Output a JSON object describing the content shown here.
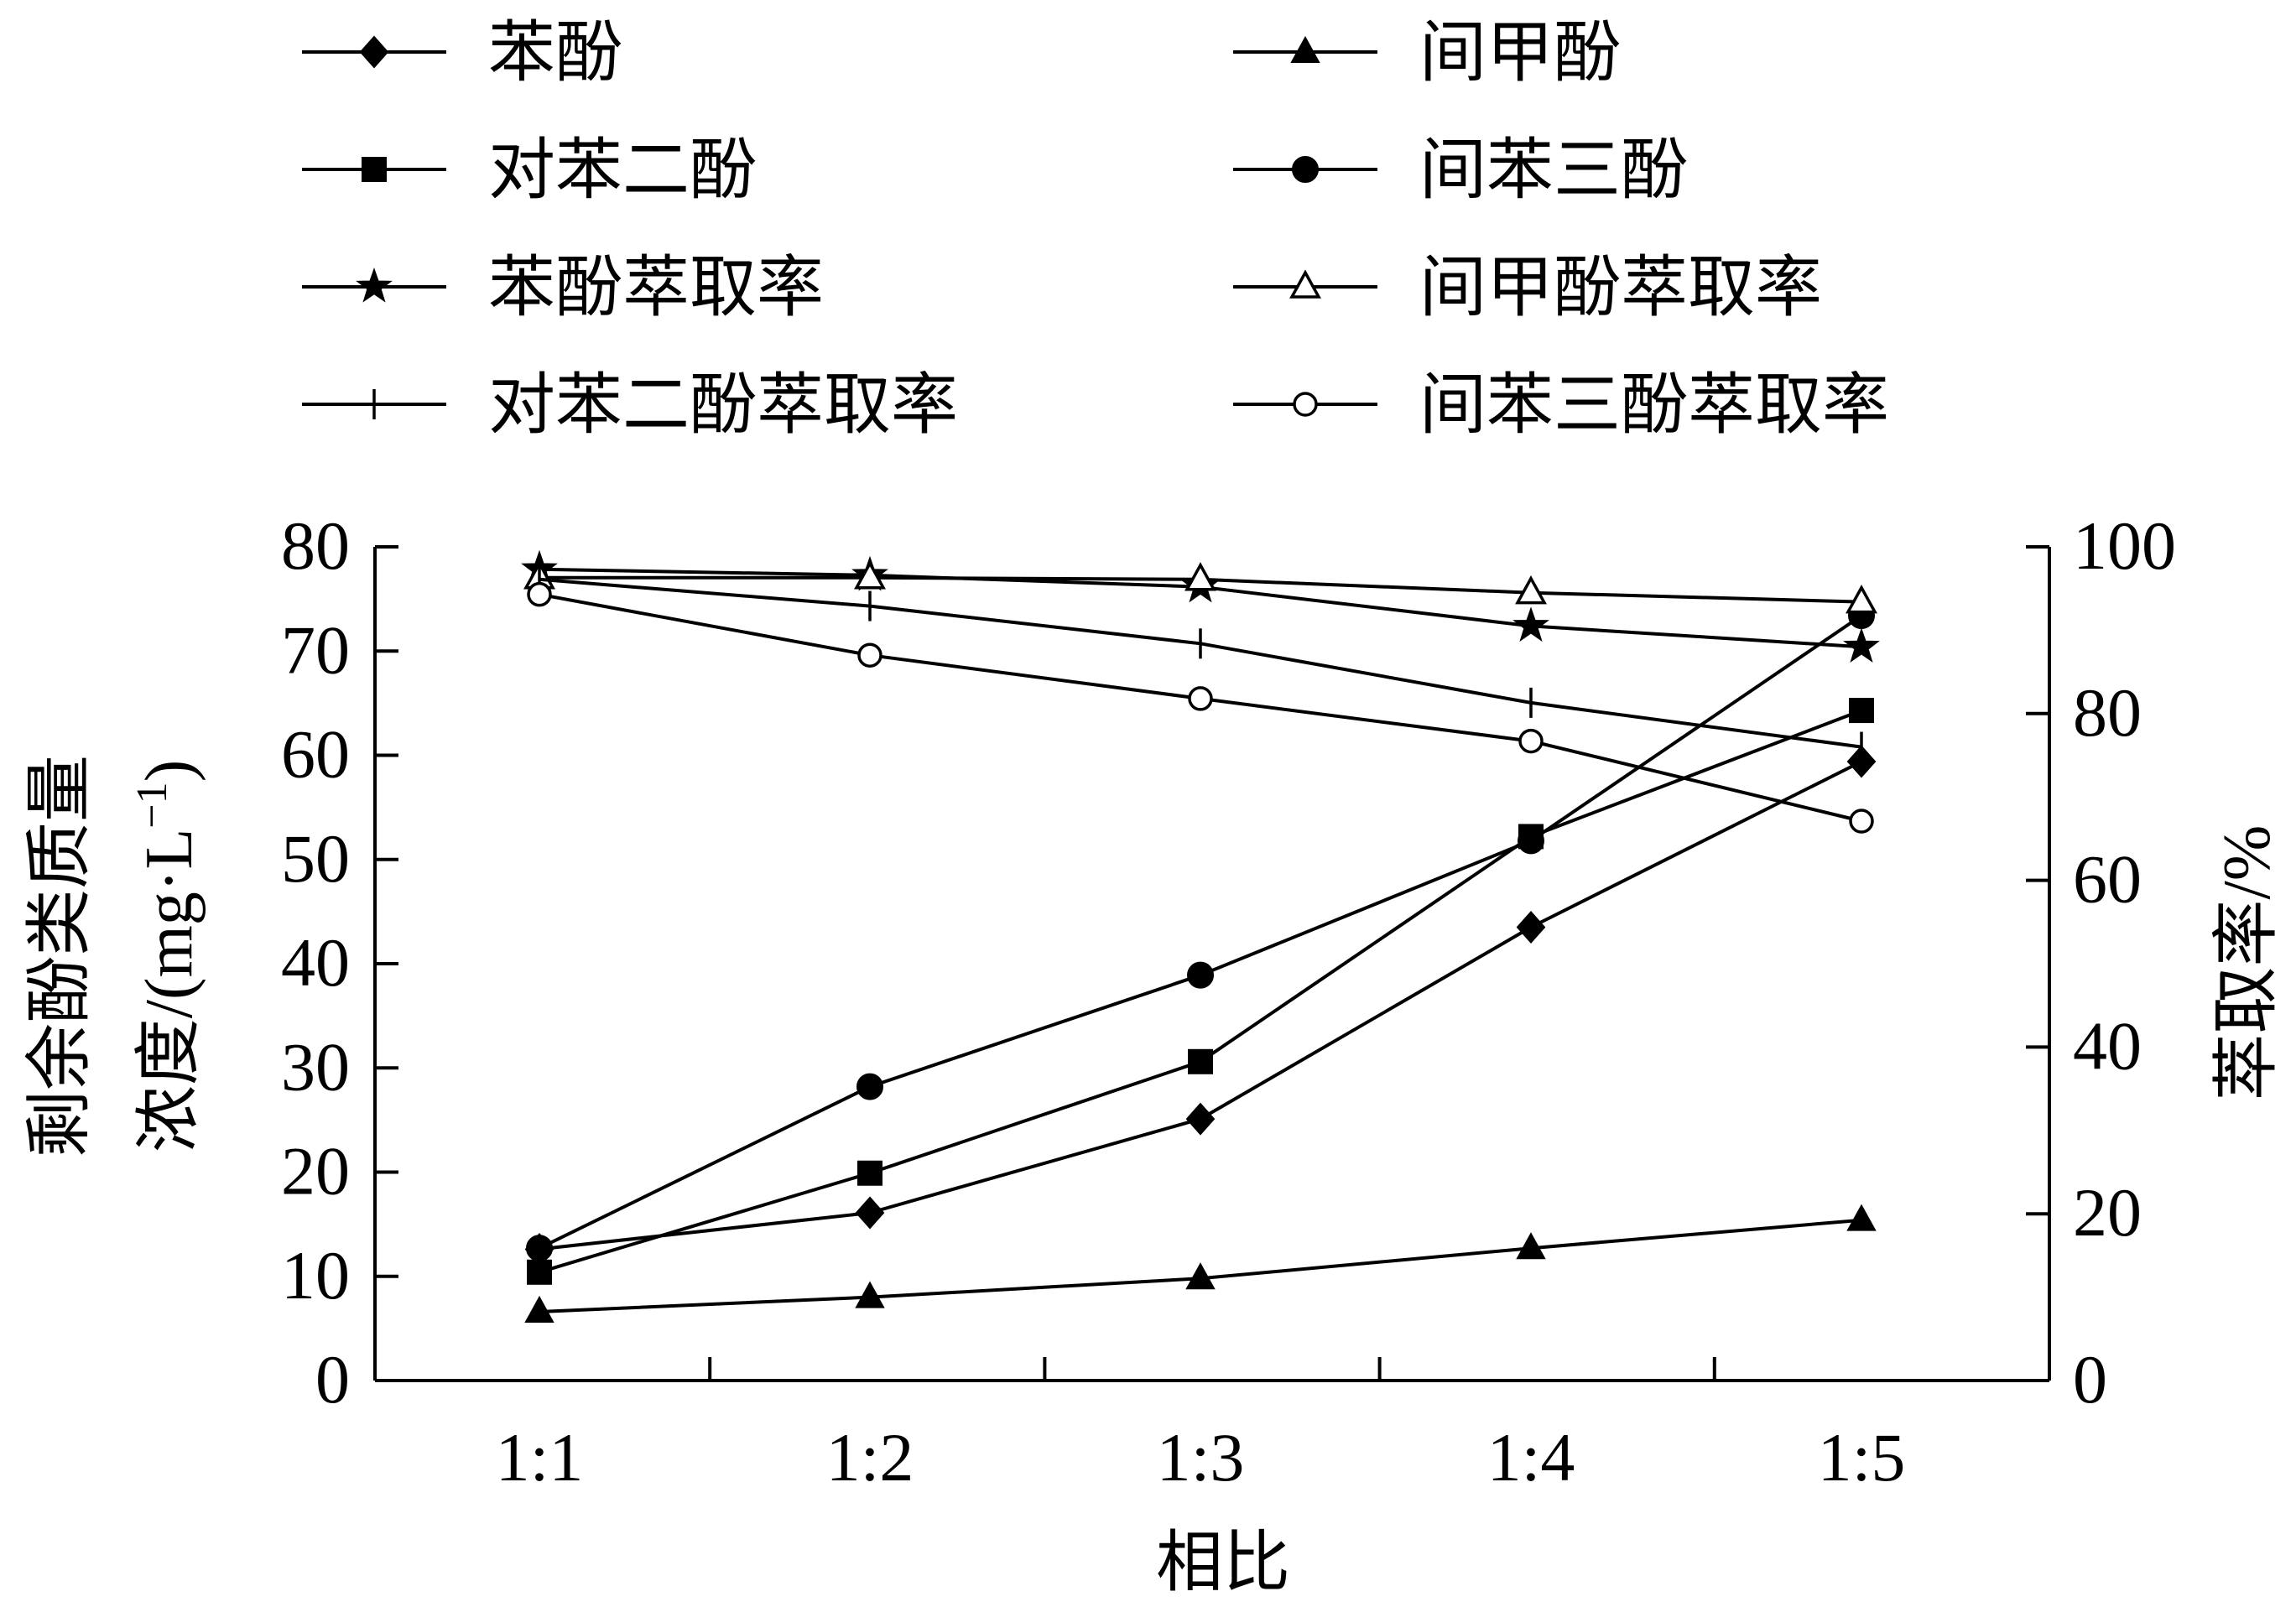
{
  "chart_data": {
    "type": "line",
    "xlabel": "相比",
    "ylabel_left_line1": "剩余酚类质量",
    "ylabel_left_line2": "浓度/(mg·L",
    "ylabel_left_sup": "−1",
    "ylabel_left_close": ")",
    "ylabel_right": "萃取率/%",
    "categories": [
      "1:1",
      "1:2",
      "1:3",
      "1:4",
      "1:5"
    ],
    "y_left": {
      "range": [
        0,
        80
      ],
      "ticks": [
        "0",
        "10",
        "20",
        "30",
        "40",
        "50",
        "60",
        "70",
        "80"
      ]
    },
    "y_right": {
      "range": [
        0,
        100
      ],
      "ticks": [
        "0",
        "20",
        "40",
        "60",
        "80",
        "100"
      ]
    },
    "grid": false,
    "legend_position": "top",
    "series": [
      {
        "name": "苯酚",
        "axis": "left",
        "marker": "diamond-filled",
        "values": [
          12.6,
          16.1,
          25.1,
          43.5,
          59.4
        ]
      },
      {
        "name": "间甲酚",
        "axis": "left",
        "marker": "triangle-filled",
        "values": [
          6.6,
          8.0,
          9.8,
          12.7,
          15.4
        ]
      },
      {
        "name": "对苯二酚",
        "axis": "left",
        "marker": "square-filled",
        "values": [
          10.4,
          19.9,
          30.6,
          52.2,
          64.3
        ]
      },
      {
        "name": "间苯三酚",
        "axis": "left",
        "marker": "circle-filled",
        "values": [
          12.7,
          28.2,
          38.9,
          51.8,
          73.4
        ]
      },
      {
        "name": "苯酚萃取率",
        "axis": "right",
        "marker": "star-filled",
        "values": [
          97.3,
          96.6,
          95.2,
          90.5,
          88.0
        ]
      },
      {
        "name": "间甲酚萃取率",
        "axis": "right",
        "marker": "triangle-open",
        "values": [
          96.3,
          96.3,
          96.1,
          94.5,
          93.4
        ]
      },
      {
        "name": "对苯二酚萃取率",
        "axis": "right",
        "marker": "plus",
        "values": [
          96.1,
          92.9,
          88.4,
          81.3,
          76.0
        ]
      },
      {
        "name": "间苯三酚萃取率",
        "axis": "right",
        "marker": "circle-open",
        "values": [
          94.3,
          87.0,
          81.8,
          76.7,
          67.1
        ]
      }
    ]
  }
}
